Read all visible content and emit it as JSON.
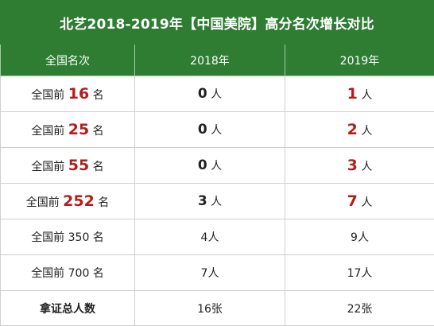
{
  "title": "北艺2018-2019年【中国美院】高分名次增长对比",
  "headers": [
    "全国名次",
    "2018年",
    "2019年"
  ],
  "rows": [
    {
      "prefix": "全国前",
      "rank": "16",
      "suffix": "名",
      "y2018_num": "0",
      "y2018_unit": "人",
      "y2019_num": "1",
      "y2019_unit": "人"
    },
    {
      "prefix": "全国前",
      "rank": "25",
      "suffix": "名",
      "y2018_num": "0",
      "y2018_unit": "人",
      "y2019_num": "2",
      "y2019_unit": "人"
    },
    {
      "prefix": "全国前",
      "rank": "55",
      "suffix": "名",
      "y2018_num": "0",
      "y2018_unit": "人",
      "y2019_num": "3",
      "y2019_unit": "人"
    },
    {
      "prefix": "全国前",
      "rank": "252",
      "suffix": "名",
      "y2018_num": "3",
      "y2018_unit": "人",
      "y2019_num": "7",
      "y2019_unit": "人"
    },
    {
      "label": "全国前 350 名",
      "y2018": "4人",
      "y2019": "9人"
    },
    {
      "label": "全国前 700 名",
      "y2018": "7人",
      "y2019": "17人"
    },
    {
      "label": "拿证总人数",
      "y2018": "16张",
      "y2019": "22张"
    }
  ]
}
